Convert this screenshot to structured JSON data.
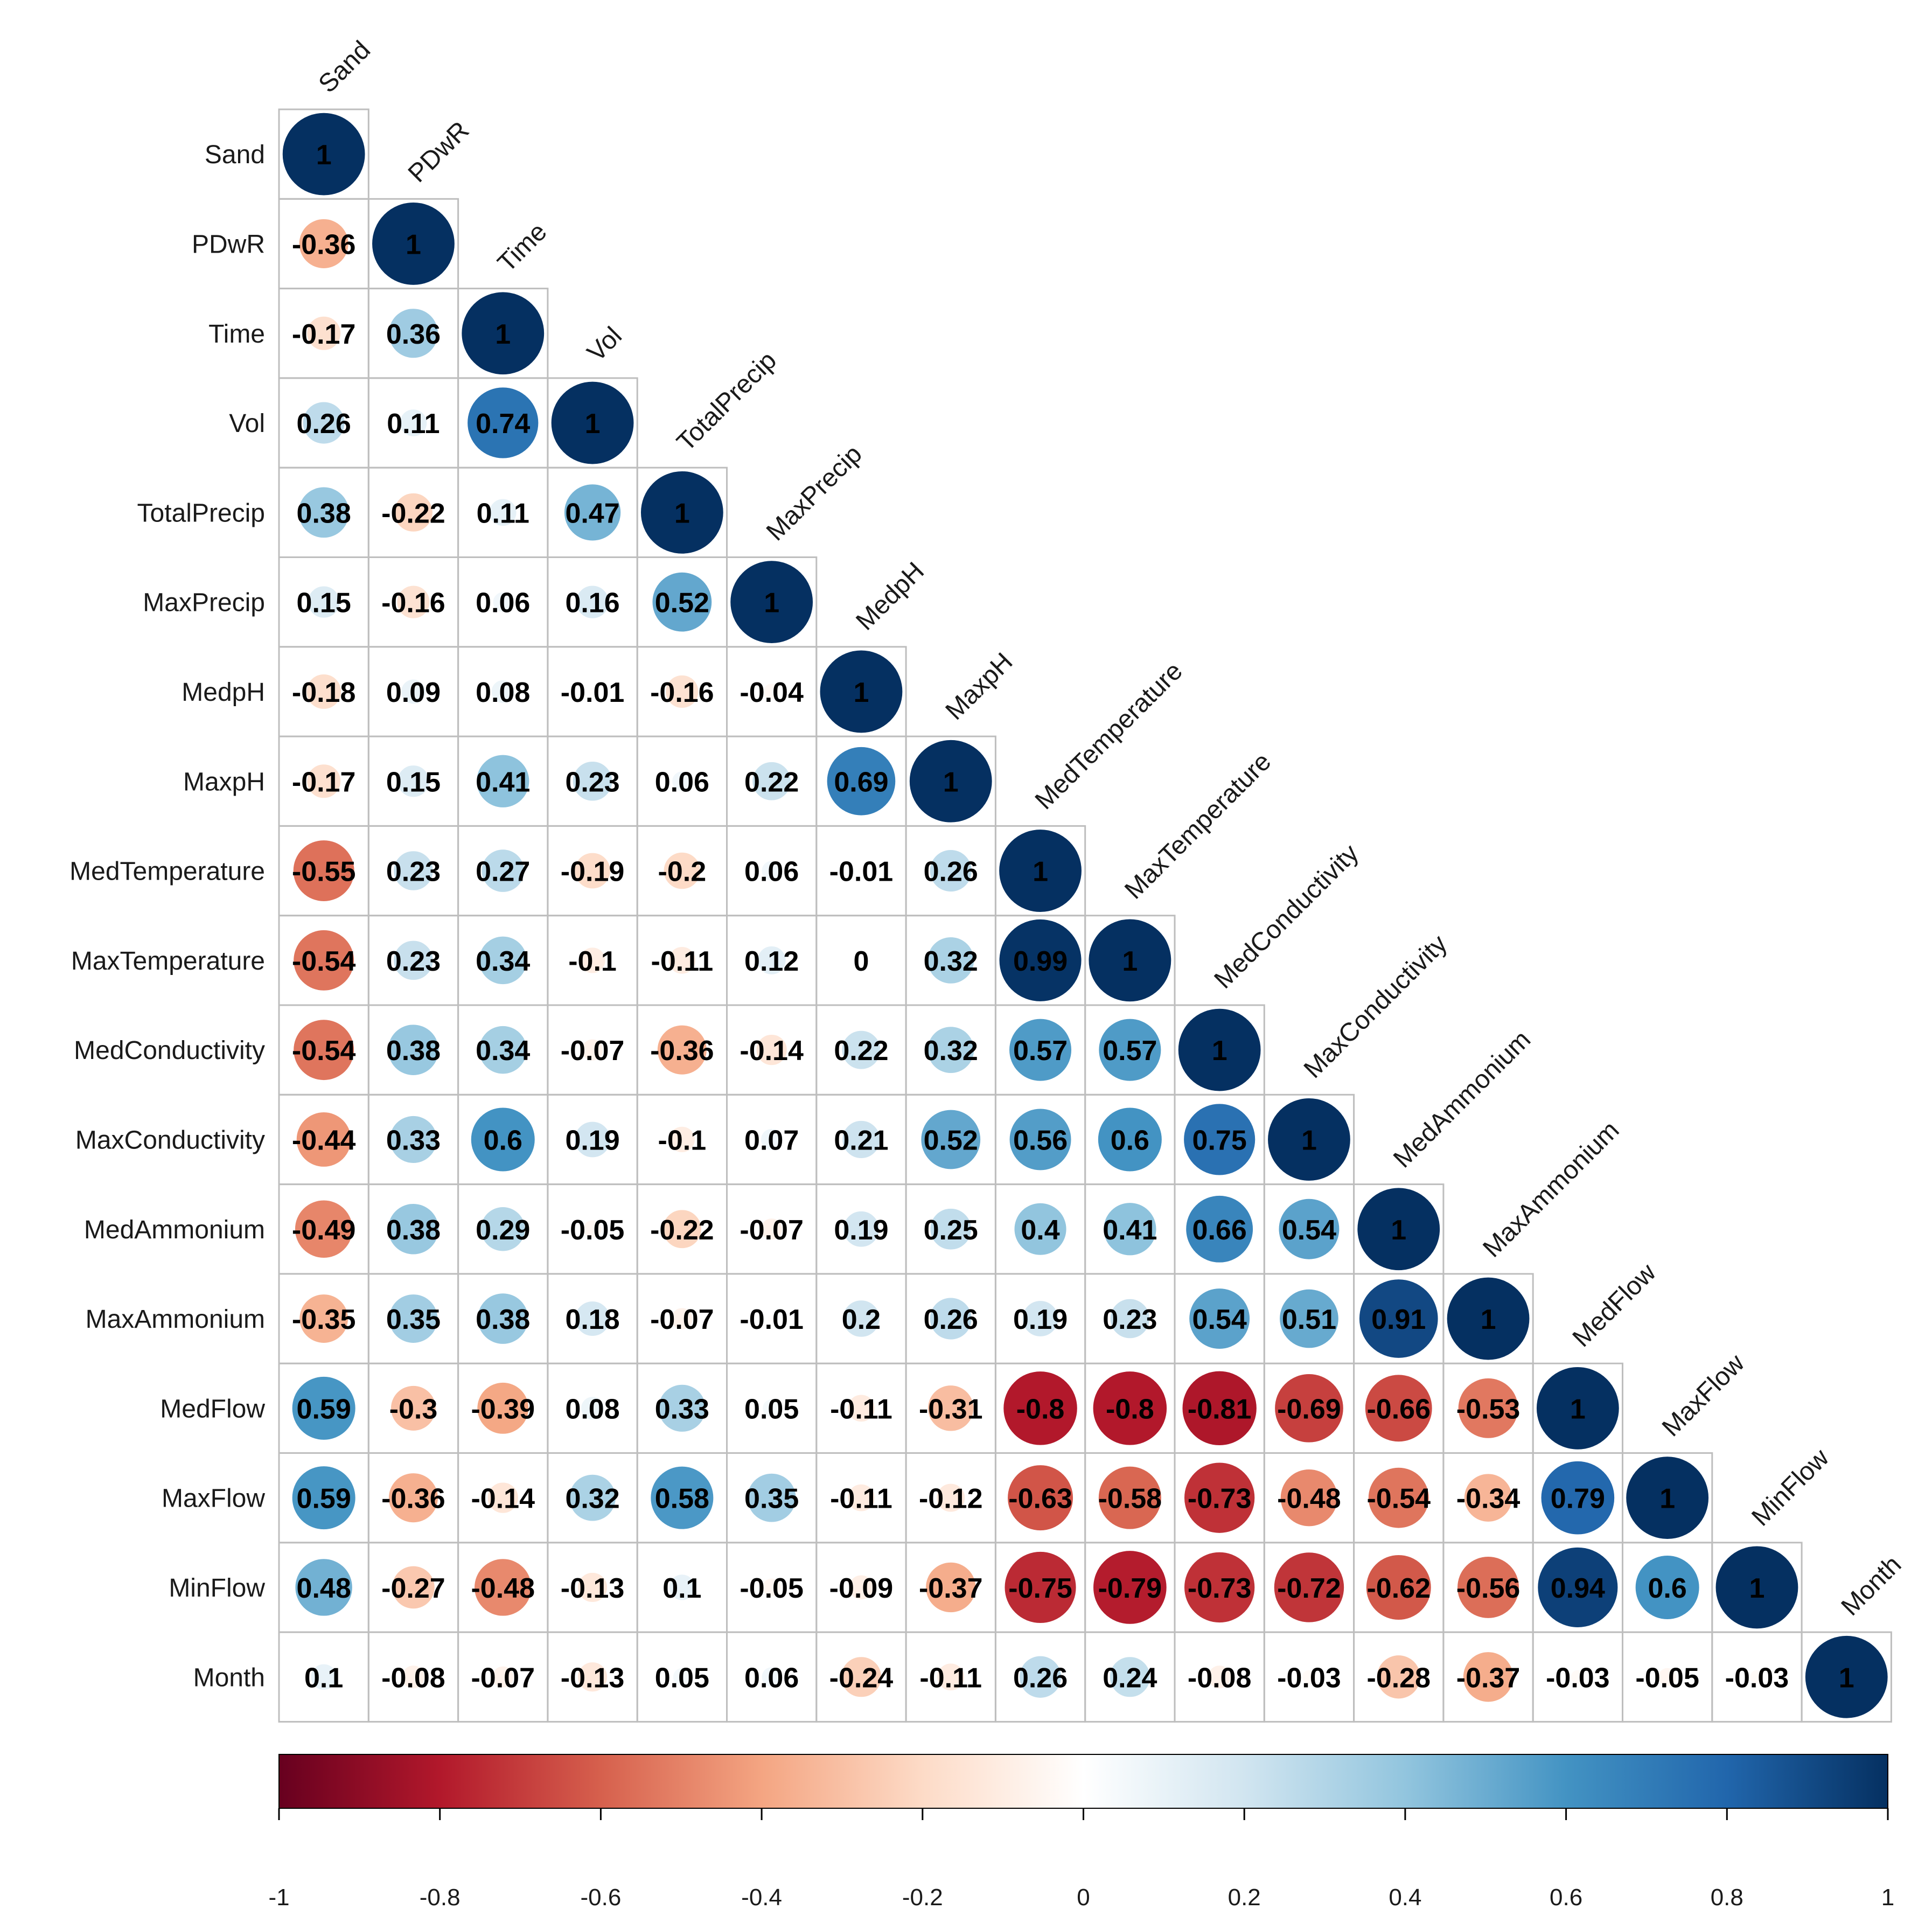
{
  "chart_data": {
    "type": "heatmap",
    "subtype": "correlation-matrix-lower-triangle",
    "variables": [
      "Sand",
      "PDwR",
      "Time",
      "Vol",
      "TotalPrecip",
      "MaxPrecip",
      "MedpH",
      "MaxpH",
      "MedTemperature",
      "MaxTemperature",
      "MedConductivity",
      "MaxConductivity",
      "MedAmmonium",
      "MaxAmmonium",
      "MedFlow",
      "MaxFlow",
      "MinFlow",
      "Month"
    ],
    "matrix": [
      [
        1
      ],
      [
        -0.36,
        1
      ],
      [
        -0.17,
        0.36,
        1
      ],
      [
        0.26,
        0.11,
        0.74,
        1
      ],
      [
        0.38,
        -0.22,
        0.11,
        0.47,
        1
      ],
      [
        0.15,
        -0.16,
        0.06,
        0.16,
        0.52,
        1
      ],
      [
        -0.18,
        0.09,
        0.08,
        -0.01,
        -0.16,
        -0.04,
        1
      ],
      [
        -0.17,
        0.15,
        0.41,
        0.23,
        0.06,
        0.22,
        0.69,
        1
      ],
      [
        -0.55,
        0.23,
        0.27,
        -0.19,
        -0.2,
        0.06,
        -0.01,
        0.26,
        1
      ],
      [
        -0.54,
        0.23,
        0.34,
        -0.1,
        -0.11,
        0.12,
        0,
        0.32,
        0.99,
        1
      ],
      [
        -0.54,
        0.38,
        0.34,
        -0.07,
        -0.36,
        -0.14,
        0.22,
        0.32,
        0.57,
        0.57,
        1
      ],
      [
        -0.44,
        0.33,
        0.6,
        0.19,
        -0.1,
        0.07,
        0.21,
        0.52,
        0.56,
        0.6,
        0.75,
        1
      ],
      [
        -0.49,
        0.38,
        0.29,
        -0.05,
        -0.22,
        -0.07,
        0.19,
        0.25,
        0.4,
        0.41,
        0.66,
        0.54,
        1
      ],
      [
        -0.35,
        0.35,
        0.38,
        0.18,
        -0.07,
        -0.01,
        0.2,
        0.26,
        0.19,
        0.23,
        0.54,
        0.51,
        0.91,
        1
      ],
      [
        0.59,
        -0.3,
        -0.39,
        0.08,
        0.33,
        0.05,
        -0.11,
        -0.31,
        -0.8,
        -0.8,
        -0.81,
        -0.69,
        -0.66,
        -0.53,
        1
      ],
      [
        0.59,
        -0.36,
        -0.14,
        0.32,
        0.58,
        0.35,
        -0.11,
        -0.12,
        -0.63,
        -0.58,
        -0.73,
        -0.48,
        -0.54,
        -0.34,
        0.79,
        1
      ],
      [
        0.48,
        -0.27,
        -0.48,
        -0.13,
        0.1,
        -0.05,
        -0.09,
        -0.37,
        -0.75,
        -0.79,
        -0.73,
        -0.72,
        -0.62,
        -0.56,
        0.94,
        0.6,
        1
      ],
      [
        0.1,
        -0.08,
        -0.07,
        -0.13,
        0.05,
        0.06,
        -0.24,
        -0.11,
        0.26,
        0.24,
        -0.08,
        -0.03,
        -0.28,
        -0.37,
        -0.03,
        -0.05,
        -0.03,
        1
      ]
    ],
    "color_range": [
      -1,
      1
    ],
    "colorbar": {
      "ticks": [
        "-1",
        "-0.8",
        "-0.6",
        "-0.4",
        "-0.2",
        "0",
        "0.2",
        "0.4",
        "0.6",
        "0.8",
        "1"
      ],
      "placement": "bottom"
    },
    "palette": [
      "#67001F",
      "#B2182B",
      "#D6604D",
      "#F4A582",
      "#FDDBC7",
      "#FFFFFF",
      "#D1E5F0",
      "#92C5DE",
      "#4393C3",
      "#2166AC",
      "#053061"
    ],
    "grid_color": "#BEBEBE",
    "method": "circle"
  }
}
